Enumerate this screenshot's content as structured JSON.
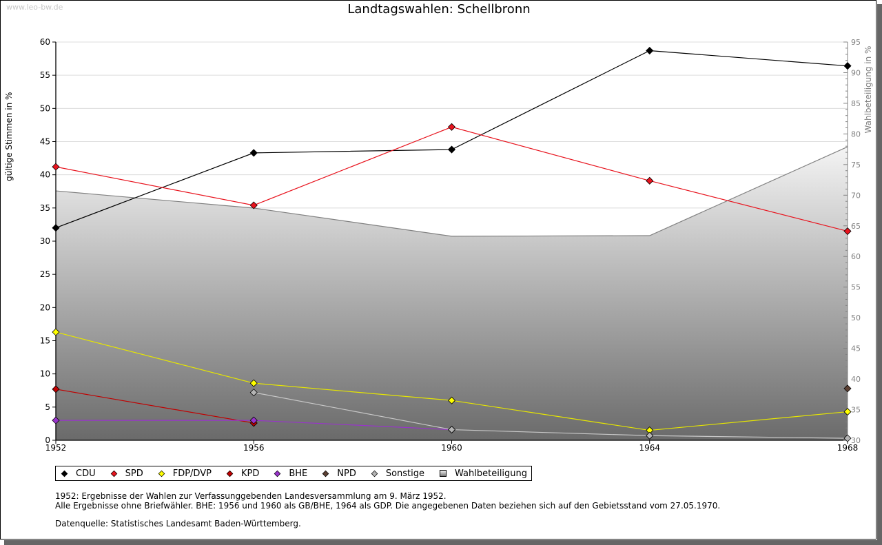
{
  "watermark": "www.leo-bw.de",
  "chart_data": {
    "type": "line",
    "title": "Landtagswahlen: Schellbronn",
    "xlabel": "",
    "ylabel": "gültige Stimmen in %",
    "y2label": "Wahlbeteiligung in %",
    "x": [
      1952,
      1956,
      1960,
      1964,
      1968
    ],
    "ylim": [
      0,
      60
    ],
    "y2lim": [
      30,
      95
    ],
    "yticks": [
      0,
      5,
      10,
      15,
      20,
      25,
      30,
      35,
      40,
      45,
      50,
      55,
      60
    ],
    "y2ticks": [
      30,
      35,
      40,
      45,
      50,
      55,
      60,
      65,
      70,
      75,
      80,
      85,
      90,
      95
    ],
    "grid": true,
    "legend_position": "bottom-left",
    "series": [
      {
        "name": "Wahlbeteiligung",
        "type": "area",
        "axis": "right",
        "color": "#808080",
        "values": [
          70.7,
          67.9,
          63.3,
          63.4,
          77.9
        ]
      },
      {
        "name": "CDU",
        "color": "#000000",
        "line_color": "#000000",
        "values": [
          32.0,
          43.3,
          43.8,
          58.7,
          56.4
        ]
      },
      {
        "name": "SPD",
        "color": "#e8141e",
        "line_color": "#e8141e",
        "values": [
          41.2,
          35.4,
          47.2,
          39.1,
          31.5
        ]
      },
      {
        "name": "FDP/DVP",
        "color": "#ffff00",
        "line_color": "#e6e600",
        "values": [
          16.3,
          8.6,
          6.0,
          1.5,
          4.3
        ]
      },
      {
        "name": "KPD",
        "color": "#c00000",
        "line_color": "#c00000",
        "values": [
          7.7,
          2.6,
          null,
          null,
          null
        ]
      },
      {
        "name": "BHE",
        "color": "#9933cc",
        "line_color": "#9933cc",
        "values": [
          3.0,
          3.0,
          1.6,
          null,
          null
        ]
      },
      {
        "name": "NPD",
        "color": "#5c4033",
        "line_color": "#5c4033",
        "values": [
          null,
          null,
          null,
          null,
          7.8
        ]
      },
      {
        "name": "Sonstige",
        "color": "#b4b4b4",
        "line_color": "#c8c8c8",
        "values": [
          null,
          7.2,
          1.6,
          0.7,
          0.3
        ]
      }
    ]
  },
  "legend": {
    "items": [
      {
        "label": "CDU",
        "color": "#000000",
        "shape": "diamond"
      },
      {
        "label": "SPD",
        "color": "#e8141e",
        "shape": "diamond"
      },
      {
        "label": "FDP/DVP",
        "color": "#ffff00",
        "shape": "diamond"
      },
      {
        "label": "KPD",
        "color": "#c00000",
        "shape": "diamond"
      },
      {
        "label": "BHE",
        "color": "#9933cc",
        "shape": "diamond"
      },
      {
        "label": "NPD",
        "color": "#5c4033",
        "shape": "diamond"
      },
      {
        "label": "Sonstige",
        "color": "#b4b4b4",
        "shape": "diamond"
      },
      {
        "label": "Wahlbeteiligung",
        "color": "#808080",
        "shape": "square"
      }
    ]
  },
  "notes": {
    "line1": "1952: Ergebnisse der Wahlen zur Verfassunggebenden Landesversammlung am 9. März 1952.",
    "line2": "Alle Ergebnisse ohne Briefwähler. BHE: 1956 und 1960 als GB/BHE, 1964 als GDP. Die angegebenen Daten beziehen sich auf den Gebietsstand vom 27.05.1970.",
    "source": "Datenquelle: Statistisches Landesamt Baden-Württemberg."
  }
}
